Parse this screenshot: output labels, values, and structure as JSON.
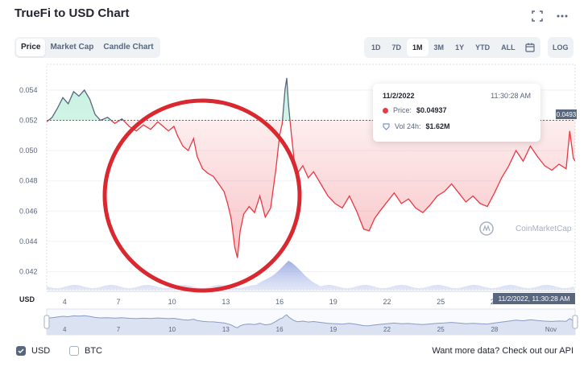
{
  "header": {
    "title": "TrueFi to USD Chart",
    "expand_icon": "expand-icon",
    "more_icon": "more-horizontal-icon"
  },
  "tabs": [
    {
      "label": "Price",
      "active": true
    },
    {
      "label": "Market Cap",
      "active": false
    },
    {
      "label": "Candle Chart",
      "active": false
    }
  ],
  "ranges": [
    {
      "label": "1D",
      "active": false
    },
    {
      "label": "7D",
      "active": false
    },
    {
      "label": "1M",
      "active": true
    },
    {
      "label": "3M",
      "active": false
    },
    {
      "label": "1Y",
      "active": false
    },
    {
      "label": "YTD",
      "active": false
    },
    {
      "label": "ALL",
      "active": false
    }
  ],
  "calendar_icon": "calendar-icon",
  "log_label": "LOG",
  "tooltip": {
    "date": "11/2/2022",
    "time": "11:30:28 AM",
    "price_label": "Price:",
    "price_value": "$0.04937",
    "vol_label": "Vol 24h:",
    "vol_value": "$1.62M"
  },
  "chart_data": {
    "type": "line",
    "currency_label": "USD",
    "y_ticks": [
      0.042,
      0.044,
      0.046,
      0.048,
      0.05,
      0.052,
      0.054
    ],
    "y_tick_labels": [
      "0.042",
      "0.044",
      "0.046",
      "0.048",
      "0.050",
      "0.052",
      "0.054"
    ],
    "ylim": [
      0.0408,
      0.0557
    ],
    "x_ticks": [
      4,
      7,
      10,
      13,
      16,
      19,
      22,
      25,
      28
    ],
    "x_tick_labels": [
      "4",
      "7",
      "10",
      "13",
      "16",
      "19",
      "22",
      "25",
      "28"
    ],
    "xlim": [
      3,
      32.5
    ],
    "current_price_label": "0.0493",
    "cursor_label": "11/2/2022, 11:30:28 AM",
    "watermark": "CoinMarketCap",
    "price_points": [
      [
        3.0,
        0.0519
      ],
      [
        3.3,
        0.0522
      ],
      [
        3.6,
        0.0528
      ],
      [
        3.9,
        0.0535
      ],
      [
        4.2,
        0.0531
      ],
      [
        4.5,
        0.0539
      ],
      [
        4.8,
        0.0536
      ],
      [
        5.1,
        0.054
      ],
      [
        5.4,
        0.0534
      ],
      [
        5.7,
        0.0524
      ],
      [
        6.0,
        0.052
      ],
      [
        6.4,
        0.0522
      ],
      [
        6.8,
        0.0518
      ],
      [
        7.2,
        0.0521
      ],
      [
        7.6,
        0.0516
      ],
      [
        8.0,
        0.0513
      ],
      [
        8.4,
        0.0517
      ],
      [
        8.8,
        0.0514
      ],
      [
        9.2,
        0.0519
      ],
      [
        9.5,
        0.0516
      ],
      [
        9.8,
        0.0513
      ],
      [
        10.1,
        0.0516
      ],
      [
        10.3,
        0.051
      ],
      [
        10.6,
        0.0503
      ],
      [
        10.9,
        0.05
      ],
      [
        11.2,
        0.0508
      ],
      [
        11.4,
        0.0496
      ],
      [
        11.7,
        0.0488
      ],
      [
        12.0,
        0.0485
      ],
      [
        12.3,
        0.0483
      ],
      [
        12.6,
        0.0478
      ],
      [
        12.9,
        0.0473
      ],
      [
        13.1,
        0.0465
      ],
      [
        13.3,
        0.0455
      ],
      [
        13.5,
        0.0436
      ],
      [
        13.65,
        0.0429
      ],
      [
        13.8,
        0.0447
      ],
      [
        14.0,
        0.0458
      ],
      [
        14.3,
        0.0463
      ],
      [
        14.6,
        0.0459
      ],
      [
        14.9,
        0.047
      ],
      [
        15.2,
        0.0456
      ],
      [
        15.5,
        0.0462
      ],
      [
        15.8,
        0.0488
      ],
      [
        16.0,
        0.051
      ],
      [
        16.15,
        0.0518
      ],
      [
        16.3,
        0.054
      ],
      [
        16.4,
        0.0548
      ],
      [
        16.5,
        0.053
      ],
      [
        16.65,
        0.0512
      ],
      [
        16.8,
        0.0495
      ],
      [
        17.0,
        0.0485
      ],
      [
        17.3,
        0.049
      ],
      [
        17.6,
        0.0482
      ],
      [
        17.9,
        0.0486
      ],
      [
        18.3,
        0.0478
      ],
      [
        18.7,
        0.047
      ],
      [
        19.1,
        0.0465
      ],
      [
        19.5,
        0.0462
      ],
      [
        19.9,
        0.047
      ],
      [
        20.3,
        0.046
      ],
      [
        20.7,
        0.0448
      ],
      [
        21.0,
        0.0447
      ],
      [
        21.3,
        0.0455
      ],
      [
        21.6,
        0.046
      ],
      [
        22.0,
        0.0466
      ],
      [
        22.4,
        0.0472
      ],
      [
        22.8,
        0.0465
      ],
      [
        23.2,
        0.0468
      ],
      [
        23.6,
        0.0462
      ],
      [
        24.0,
        0.0459
      ],
      [
        24.4,
        0.0464
      ],
      [
        24.8,
        0.047
      ],
      [
        25.2,
        0.0473
      ],
      [
        25.6,
        0.0478
      ],
      [
        26.0,
        0.0472
      ],
      [
        26.4,
        0.0466
      ],
      [
        26.8,
        0.047
      ],
      [
        27.2,
        0.0465
      ],
      [
        27.6,
        0.0463
      ],
      [
        28.0,
        0.0472
      ],
      [
        28.4,
        0.0482
      ],
      [
        28.8,
        0.049
      ],
      [
        29.2,
        0.05
      ],
      [
        29.6,
        0.0493
      ],
      [
        30.0,
        0.0503
      ],
      [
        30.4,
        0.0496
      ],
      [
        30.8,
        0.049
      ],
      [
        31.2,
        0.0487
      ],
      [
        31.6,
        0.0491
      ],
      [
        32.0,
        0.0488
      ],
      [
        32.2,
        0.0513
      ],
      [
        32.4,
        0.0495
      ],
      [
        32.5,
        0.0493
      ]
    ],
    "baseline_price": 0.052,
    "volume_peak_day": 16.5,
    "navigator": {
      "x_ticks": [
        4,
        7,
        10,
        13,
        16,
        19,
        22,
        25,
        28
      ],
      "x_tick_labels": [
        "4",
        "7",
        "10",
        "13",
        "16",
        "19",
        "22",
        "25",
        "28"
      ],
      "end_label": "Nov"
    }
  },
  "footer": {
    "usd_label": "USD",
    "usd_checked": true,
    "btc_label": "BTC",
    "btc_checked": false,
    "api_link": "Want more data? Check out our API"
  },
  "colors": {
    "down": "#ea3943",
    "up": "#16c784",
    "baseline_line": "#58667e",
    "annotation_circle": "#d9282f"
  }
}
